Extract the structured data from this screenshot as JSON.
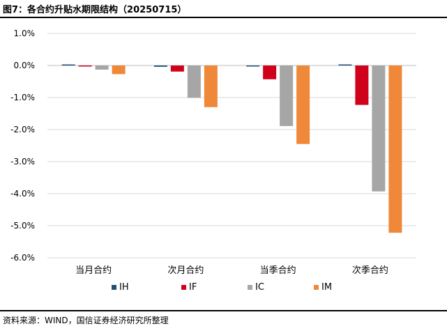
{
  "header": {
    "title": "图7：各合约升贴水期限结构（20250715）"
  },
  "footer": {
    "source": "资料来源：WIND，国信证券经济研究所整理"
  },
  "chart_data": {
    "type": "bar",
    "title": "",
    "xlabel": "",
    "ylabel": "",
    "categories": [
      "当月合约",
      "次月合约",
      "当季合约",
      "次季合约"
    ],
    "series": [
      {
        "name": "IH",
        "color": "#1f4e79",
        "values": [
          0.02,
          -0.04,
          -0.01,
          0.01
        ]
      },
      {
        "name": "IF",
        "color": "#d0021b",
        "values": [
          -0.01,
          -0.19,
          -0.43,
          -1.23
        ]
      },
      {
        "name": "IC",
        "color": "#a6a6a6",
        "values": [
          -0.13,
          -1.01,
          -1.89,
          -3.93
        ]
      },
      {
        "name": "IM",
        "color": "#f0883a",
        "values": [
          -0.27,
          -1.3,
          -2.45,
          -5.22
        ]
      }
    ],
    "ylim": [
      -6.0,
      1.0
    ],
    "yticks": [
      1.0,
      0.0,
      -1.0,
      -2.0,
      -3.0,
      -4.0,
      -5.0,
      -6.0
    ],
    "ytick_labels": [
      "1.0%",
      "0.0%",
      "-1.0%",
      "-2.0%",
      "-3.0%",
      "-4.0%",
      "-5.0%",
      "-6.0%"
    ],
    "grid": true,
    "legend_position": "bottom"
  }
}
